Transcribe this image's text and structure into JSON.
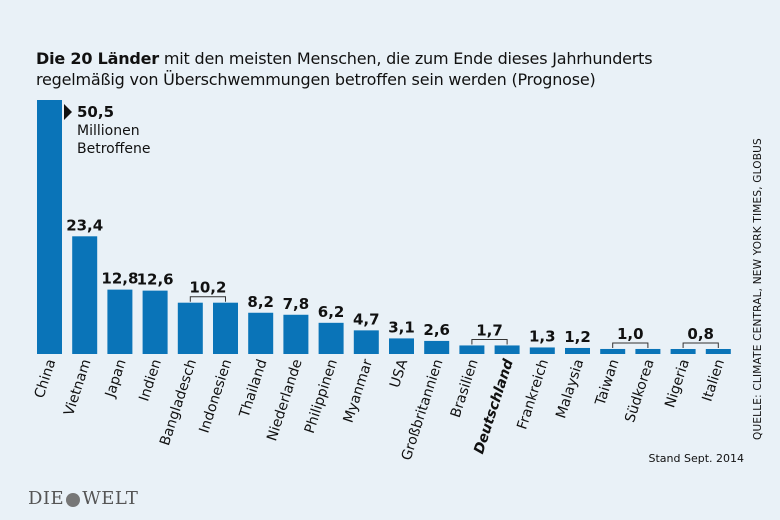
{
  "header": {
    "title_bold": "Die 20 Länder",
    "title_rest": " mit den meisten Menschen, die zum Ende dieses Jahrhunderts regelmäßig von Überschwemmungen betroffen sein werden (Prognose)"
  },
  "source": "QUELLE: CLIMATE CENTRAL, NEW YORK TIMES, GLOBUS",
  "stand": "Stand Sept. 2014",
  "logo": {
    "left": "DIE",
    "right": "WELT"
  },
  "chart_data": {
    "type": "bar",
    "title": "Die 20 Länder mit den meisten Menschen, die zum Ende dieses Jahrhunderts regelmäßig von Überschwemmungen betroffen sein werden (Prognose)",
    "unit_line1": "Millionen",
    "unit_line2": "Betroffene",
    "categories": [
      "China",
      "Vietnam",
      "Japan",
      "Indien",
      "Bangladesch",
      "Indonesien",
      "Thailand",
      "Niederlande",
      "Philippinen",
      "Myanmar",
      "USA",
      "Großbritannien",
      "Brasilien",
      "Deutschland",
      "Frankreich",
      "Malaysia",
      "Taiwan",
      "Südkorea",
      "Nigeria",
      "Italien"
    ],
    "values": [
      50.5,
      23.4,
      12.8,
      12.6,
      10.2,
      10.2,
      8.2,
      7.8,
      6.2,
      4.7,
      3.1,
      2.6,
      1.7,
      1.7,
      1.3,
      1.2,
      1.0,
      1.0,
      0.8,
      0.8
    ],
    "value_labels": [
      "50,5",
      "23,4",
      "12,8",
      "12,6",
      "10,2",
      "",
      "8,2",
      "7,8",
      "6,2",
      "4,7",
      "3,1",
      "2,6",
      "1,7",
      "",
      "1,3",
      "1,2",
      "1,0",
      "",
      "0,8",
      ""
    ],
    "bracket_pairs": [
      [
        4,
        5
      ],
      [
        12,
        13
      ],
      [
        16,
        17
      ],
      [
        18,
        19
      ]
    ],
    "highlight": "Deutschland",
    "color": "#0a74b8",
    "ylim": [
      0,
      50.5
    ]
  }
}
